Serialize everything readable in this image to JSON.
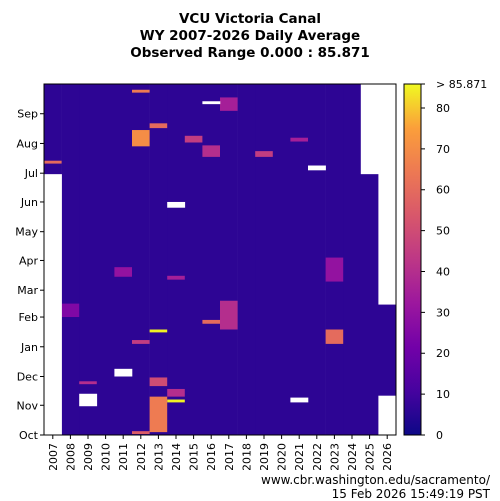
{
  "title": {
    "line1": "VCU Victoria Canal",
    "line2": "WY 2007-2026 Daily Average",
    "line3": "Observed Range 0.000 : 85.871"
  },
  "footer": {
    "url": "www.cbr.washington.edu/sacramento/",
    "timestamp": "15 Feb 2026 15:49:19 PST"
  },
  "chart_data": {
    "type": "heatmap",
    "colormap": "plasma",
    "x": [
      "2007",
      "2008",
      "2009",
      "2010",
      "2011",
      "2012",
      "2013",
      "2014",
      "2015",
      "2016",
      "2017",
      "2018",
      "2019",
      "2020",
      "2021",
      "2022",
      "2023",
      "2024",
      "2025",
      "2026"
    ],
    "y_ticks": [
      "Oct",
      "Nov",
      "Dec",
      "Jan",
      "Feb",
      "Mar",
      "Apr",
      "May",
      "Jun",
      "Jul",
      "Aug",
      "Sep"
    ],
    "colorbar": {
      "min": 0,
      "max": 85.871,
      "ticks": [
        "0",
        "10",
        "20",
        "30",
        "40",
        "50",
        "60",
        "70",
        "80"
      ],
      "top_label": "> 85.871"
    },
    "typical_value": 6,
    "missing": [
      {
        "year": "2007",
        "start_day": 0,
        "end_day": 272
      },
      {
        "year": "2009",
        "start_day": 30,
        "end_day": 43
      },
      {
        "year": "2011",
        "start_day": 61,
        "end_day": 69
      },
      {
        "year": "2014",
        "start_day": 237,
        "end_day": 243
      },
      {
        "year": "2016",
        "start_day": 345,
        "end_day": 348
      },
      {
        "year": "2021",
        "start_day": 34,
        "end_day": 39
      },
      {
        "year": "2022",
        "start_day": 276,
        "end_day": 281
      },
      {
        "year": "2025",
        "start_day": 272,
        "end_day": 366
      },
      {
        "year": "2026",
        "start_day": 0,
        "end_day": 41
      },
      {
        "year": "2026",
        "start_day": 136,
        "end_day": 366
      }
    ],
    "highlights": [
      {
        "year": "2007",
        "start_day": 283,
        "end_day": 286,
        "value": 60
      },
      {
        "year": "2008",
        "start_day": 123,
        "end_day": 137,
        "value": 25
      },
      {
        "year": "2009",
        "start_day": 53,
        "end_day": 56,
        "value": 40
      },
      {
        "year": "2011",
        "start_day": 165,
        "end_day": 175,
        "value": 30
      },
      {
        "year": "2012",
        "start_day": 1,
        "end_day": 4,
        "value": 55
      },
      {
        "year": "2012",
        "start_day": 95,
        "end_day": 99,
        "value": 45
      },
      {
        "year": "2012",
        "start_day": 301,
        "end_day": 318,
        "value": 70
      },
      {
        "year": "2012",
        "start_day": 357,
        "end_day": 360,
        "value": 65
      },
      {
        "year": "2013",
        "start_day": 3,
        "end_day": 40,
        "value": 65
      },
      {
        "year": "2013",
        "start_day": 51,
        "end_day": 60,
        "value": 50
      },
      {
        "year": "2013",
        "start_day": 107,
        "end_day": 110,
        "value": 85
      },
      {
        "year": "2013",
        "start_day": 320,
        "end_day": 325,
        "value": 60
      },
      {
        "year": "2014",
        "start_day": 34,
        "end_day": 37,
        "value": 85
      },
      {
        "year": "2014",
        "start_day": 40,
        "end_day": 48,
        "value": 40
      },
      {
        "year": "2014",
        "start_day": 162,
        "end_day": 166,
        "value": 35
      },
      {
        "year": "2015",
        "start_day": 305,
        "end_day": 312,
        "value": 45
      },
      {
        "year": "2016",
        "start_day": 116,
        "end_day": 120,
        "value": 60
      },
      {
        "year": "2016",
        "start_day": 290,
        "end_day": 302,
        "value": 40
      },
      {
        "year": "2017",
        "start_day": 110,
        "end_day": 140,
        "value": 40
      },
      {
        "year": "2017",
        "start_day": 338,
        "end_day": 352,
        "value": 35
      },
      {
        "year": "2019",
        "start_day": 290,
        "end_day": 296,
        "value": 45
      },
      {
        "year": "2021",
        "start_day": 306,
        "end_day": 310,
        "value": 35
      },
      {
        "year": "2023",
        "start_day": 95,
        "end_day": 110,
        "value": 60
      },
      {
        "year": "2023",
        "start_day": 160,
        "end_day": 185,
        "value": 30
      }
    ]
  }
}
